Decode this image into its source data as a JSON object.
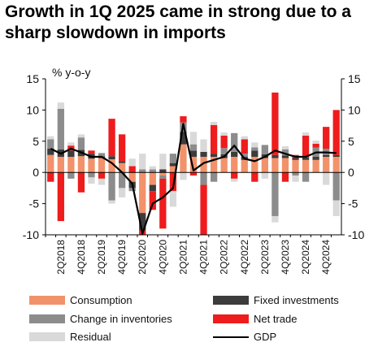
{
  "title_line1": "Growth in 1Q 2025 came in strong due to a",
  "title_line2": "sharp slowdown in imports",
  "chart_data": {
    "type": "bar",
    "subtype": "stacked bar with line overlay",
    "unit_label": "% y-o-y",
    "ylim": [
      -10,
      15
    ],
    "yticks": [
      -10,
      -5,
      0,
      5,
      10,
      15
    ],
    "quarters": [
      "1Q2018",
      "2Q2018",
      "3Q2018",
      "4Q2018",
      "1Q2019",
      "2Q2019",
      "3Q2019",
      "4Q2019",
      "1Q2020",
      "2Q2020",
      "3Q2020",
      "4Q2020",
      "1Q2021",
      "2Q2021",
      "3Q2021",
      "4Q2021",
      "1Q2022",
      "2Q2022",
      "3Q2022",
      "4Q2022",
      "1Q2023",
      "2Q2023",
      "3Q2023",
      "4Q2023",
      "1Q2024",
      "2Q2024",
      "3Q2024",
      "4Q2024",
      "1Q2025"
    ],
    "x_tick_labels": [
      "2Q2018",
      "4Q2018",
      "2Q2019",
      "4Q2019",
      "2Q2020",
      "4Q2020",
      "2Q2021",
      "4Q2021",
      "2Q2022",
      "4Q2022",
      "2Q2023",
      "4Q2023",
      "2Q2024",
      "4Q2024"
    ],
    "colors": {
      "Consumption": "#f2926b",
      "Fixed investments": "#3c3c3c",
      "Change in inventories": "#8c8c8c",
      "Net trade": "#ee1c1c",
      "Residual": "#d9d9d9",
      "GDP": "#000000"
    },
    "series": [
      {
        "name": "Consumption",
        "values": [
          2.8,
          2.5,
          2.5,
          2.6,
          2.2,
          2.3,
          2.1,
          1.5,
          -1.5,
          -6.5,
          -2.0,
          -0.5,
          1.0,
          4.5,
          2.5,
          2.5,
          2.5,
          2.3,
          2.5,
          2.0,
          2.5,
          2.3,
          2.3,
          2.3,
          2.0,
          2.0,
          2.0,
          2.5,
          2.5
        ]
      },
      {
        "name": "Fixed investments",
        "values": [
          1.0,
          1.2,
          1.0,
          1.0,
          0.8,
          0.3,
          0.5,
          0.3,
          -1.0,
          -2.8,
          -1.0,
          0.5,
          0.5,
          2.0,
          1.0,
          0.8,
          0.5,
          0.6,
          0.8,
          0.5,
          1.0,
          0.6,
          0.5,
          0.4,
          0.3,
          0.4,
          0.5,
          0.3,
          0.3
        ]
      },
      {
        "name": "Change in inventories",
        "values": [
          1.5,
          6.5,
          -1.0,
          2.0,
          -0.8,
          0.5,
          -4.5,
          -2.5,
          -0.5,
          0.5,
          0.5,
          -0.5,
          1.5,
          1.5,
          1.0,
          -2.0,
          -1.5,
          1.0,
          3.0,
          0.5,
          0.5,
          1.5,
          -7.0,
          1.0,
          -0.5,
          -1.5,
          1.5,
          1.0,
          -4.5
        ]
      },
      {
        "name": "Net trade",
        "values": [
          -1.5,
          -7.8,
          0.8,
          -3.2,
          0.5,
          -1.0,
          6.0,
          4.3,
          1.0,
          -3.0,
          -3.0,
          -8.0,
          -3.0,
          1.0,
          -0.5,
          -9.0,
          4.6,
          2.0,
          -1.0,
          2.3,
          -1.5,
          0.0,
          10.0,
          -1.5,
          0.5,
          3.5,
          0.6,
          3.5,
          7.2
        ]
      },
      {
        "name": "Residual",
        "values": [
          0.5,
          1.0,
          0.5,
          0.5,
          -1.0,
          -1.0,
          -0.5,
          -1.5,
          1.2,
          2.5,
          0.5,
          2.5,
          -2.5,
          -1.2,
          2.0,
          2.0,
          0.5,
          0.5,
          -0.5,
          0.5,
          0.8,
          -1.0,
          -1.0,
          0.5,
          -1.0,
          0.5,
          0.5,
          -2.0,
          -2.5
        ]
      },
      {
        "name": "GDP",
        "values": [
          3.8,
          3.0,
          3.8,
          3.2,
          2.5,
          2.5,
          1.5,
          0.0,
          -1.8,
          -9.8,
          -5.0,
          -4.0,
          -2.5,
          7.8,
          0.3,
          1.5,
          2.0,
          2.5,
          4.3,
          2.2,
          1.8,
          2.5,
          3.5,
          3.0,
          2.5,
          2.5,
          3.2,
          3.2,
          3.1
        ]
      }
    ],
    "legend": {
      "position": "bottom",
      "entries": [
        "Consumption",
        "Fixed investments",
        "Change in inventories",
        "Net trade",
        "Residual",
        "GDP"
      ]
    },
    "grid": false
  }
}
